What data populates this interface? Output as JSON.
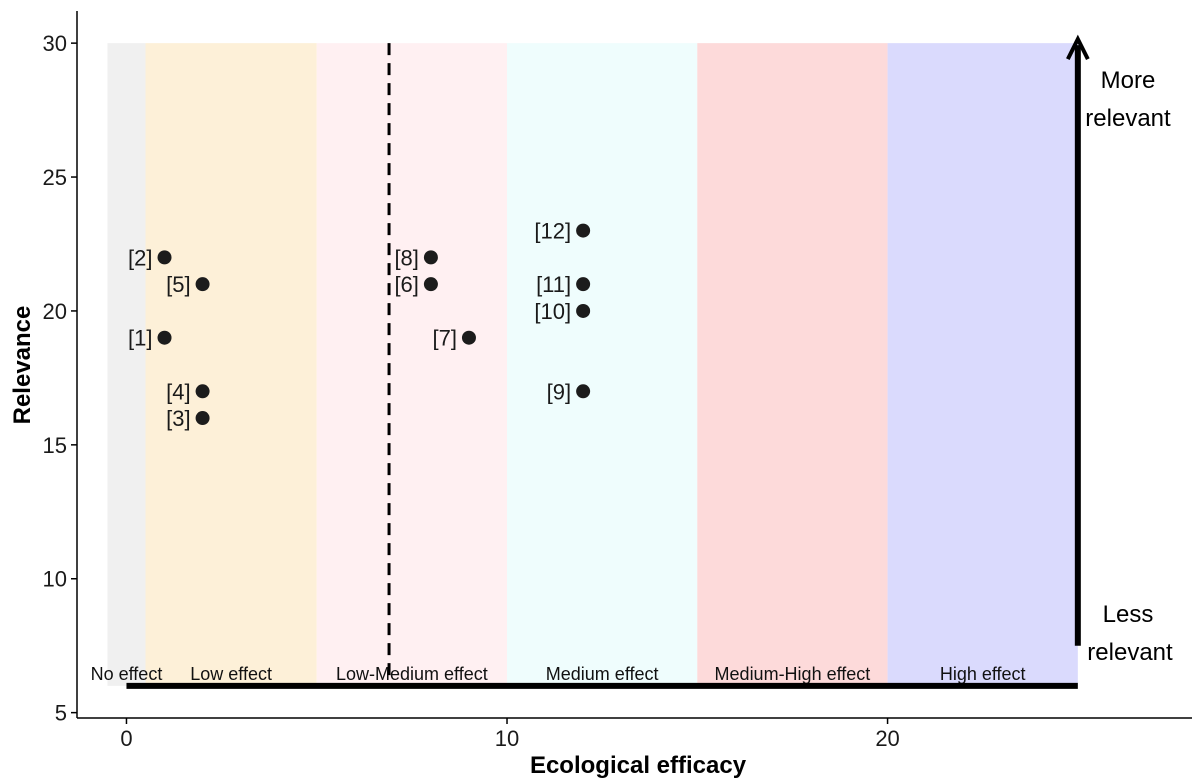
{
  "chart_data": {
    "type": "scatter",
    "xlabel": "Ecological efficacy",
    "ylabel": "Relevance",
    "xlim": [
      -1.3,
      28
    ],
    "ylim": [
      4.8,
      31.2
    ],
    "xticks": [
      0,
      10,
      20
    ],
    "yticks": [
      5,
      10,
      15,
      20,
      25,
      30
    ],
    "grid": false,
    "bands": [
      {
        "label": "No effect",
        "x0": -0.5,
        "x1": 0.5,
        "color": "#f0f0f0"
      },
      {
        "label": "Low effect",
        "x0": 0.5,
        "x1": 5,
        "color": "#fdf0d8"
      },
      {
        "label": "Low-Medium effect",
        "x0": 5,
        "x1": 10,
        "color": "#fff0f2"
      },
      {
        "label": "Medium effect",
        "x0": 10,
        "x1": 15,
        "color": "#effdfd"
      },
      {
        "label": "Medium-High effect",
        "x0": 15,
        "x1": 20,
        "color": "#fddada"
      },
      {
        "label": "High effect",
        "x0": 20,
        "x1": 25,
        "color": "#dadafd"
      }
    ],
    "band_y_range": [
      6,
      30
    ],
    "threshold_x": 6.9,
    "baseline": {
      "x0": 0,
      "x1": 25,
      "y": 6
    },
    "points": [
      {
        "label": "[1]",
        "x": 1,
        "y": 19
      },
      {
        "label": "[2]",
        "x": 1,
        "y": 22
      },
      {
        "label": "[3]",
        "x": 2,
        "y": 16
      },
      {
        "label": "[4]",
        "x": 2,
        "y": 17
      },
      {
        "label": "[5]",
        "x": 2,
        "y": 21
      },
      {
        "label": "[6]",
        "x": 8,
        "y": 21
      },
      {
        "label": "[7]",
        "x": 9,
        "y": 19
      },
      {
        "label": "[8]",
        "x": 8,
        "y": 22
      },
      {
        "label": "[9]",
        "x": 12,
        "y": 17
      },
      {
        "label": "[10]",
        "x": 12,
        "y": 20
      },
      {
        "label": "[11]",
        "x": 12,
        "y": 21
      },
      {
        "label": "[12]",
        "x": 12,
        "y": 23
      }
    ],
    "arrow": {
      "x": 25,
      "y_from": 7.5,
      "y_to": 30
    },
    "annotations": {
      "top_line1": "More",
      "top_line2": "relevant",
      "bottom_line1": "Less",
      "bottom_line2": "relevant"
    }
  }
}
